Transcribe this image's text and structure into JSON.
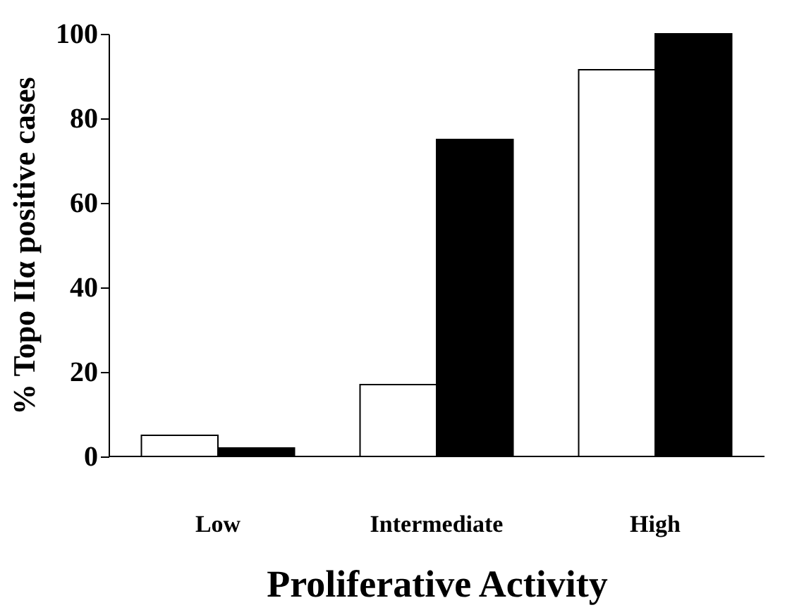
{
  "chart_data": {
    "type": "bar",
    "xlabel": "Proliferative Activity",
    "ylabel": "% Topo IIα  positive cases",
    "categories": [
      "Low",
      "Intermediate",
      "High"
    ],
    "series": [
      {
        "color": "#ffffff",
        "values": [
          5,
          17,
          91.5
        ]
      },
      {
        "color": "#000000",
        "values": [
          2,
          75,
          100
        ]
      }
    ],
    "ylim": [
      0,
      100
    ],
    "yticks": [
      0,
      20,
      40,
      60,
      80,
      100
    ],
    "grid": false
  }
}
